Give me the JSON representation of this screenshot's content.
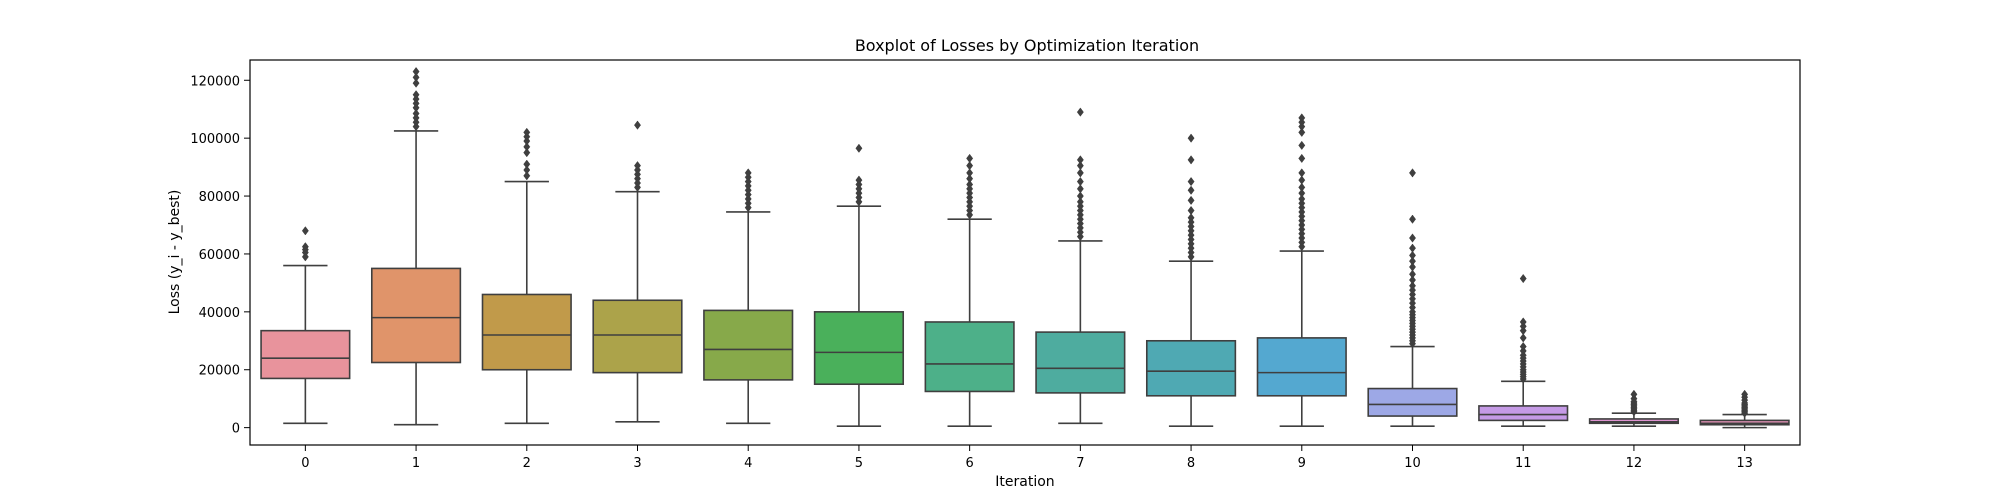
{
  "chart_data": {
    "type": "boxplot",
    "title": "Boxplot of Losses by Optimization Iteration",
    "xlabel": "Iteration",
    "ylabel": "Loss (y_i - y_best)",
    "ylim": [
      -6000,
      127000
    ],
    "yticks": [
      0,
      20000,
      40000,
      60000,
      80000,
      100000,
      120000
    ],
    "ytick_labels": [
      "0",
      "20000",
      "40000",
      "60000",
      "80000",
      "100000",
      "120000"
    ],
    "grid": false,
    "legend": "none",
    "categories": [
      "0",
      "1",
      "2",
      "3",
      "4",
      "5",
      "6",
      "7",
      "8",
      "9",
      "10",
      "11",
      "12",
      "13"
    ],
    "boxes": [
      {
        "category": "0",
        "color": "#e8939c",
        "whisker_low": 1500,
        "q1": 17000,
        "median": 24000,
        "q3": 33500,
        "whisker_high": 56000,
        "outliers": [
          59000,
          60500,
          61500,
          62500,
          68000
        ]
      },
      {
        "category": "1",
        "color": "#e0946a",
        "whisker_low": 1000,
        "q1": 22500,
        "median": 38000,
        "q3": 55000,
        "whisker_high": 102500,
        "outliers": [
          104000,
          105500,
          107000,
          108500,
          110500,
          112000,
          113500,
          115000,
          119000,
          121000,
          123000
        ]
      },
      {
        "category": "2",
        "color": "#c19a4a",
        "whisker_low": 1500,
        "q1": 20000,
        "median": 32000,
        "q3": 46000,
        "whisker_high": 85000,
        "outliers": [
          87000,
          89000,
          91000,
          95000,
          97000,
          99000,
          100500,
          102000
        ]
      },
      {
        "category": "3",
        "color": "#aca34a",
        "whisker_low": 2000,
        "q1": 19000,
        "median": 32000,
        "q3": 44000,
        "whisker_high": 81500,
        "outliers": [
          83000,
          84500,
          86000,
          87500,
          89000,
          90500,
          104500
        ]
      },
      {
        "category": "4",
        "color": "#87a94a",
        "whisker_low": 1500,
        "q1": 16500,
        "median": 27000,
        "q3": 40500,
        "whisker_high": 74500,
        "outliers": [
          76000,
          77500,
          79000,
          80500,
          82000,
          83500,
          85000,
          86500,
          88000
        ]
      },
      {
        "category": "5",
        "color": "#4ab05b",
        "whisker_low": 500,
        "q1": 15000,
        "median": 26000,
        "q3": 40000,
        "whisker_high": 76500,
        "outliers": [
          78000,
          79500,
          81000,
          82500,
          84000,
          85500,
          96500
        ]
      },
      {
        "category": "6",
        "color": "#4db089",
        "whisker_low": 500,
        "q1": 12500,
        "median": 22000,
        "q3": 36500,
        "whisker_high": 72000,
        "outliers": [
          73500,
          75000,
          76500,
          78000,
          79500,
          81000,
          82500,
          84000,
          86000,
          88000,
          90500,
          93000
        ]
      },
      {
        "category": "7",
        "color": "#4eac9f",
        "whisker_low": 1500,
        "q1": 12000,
        "median": 20500,
        "q3": 33000,
        "whisker_high": 64500,
        "outliers": [
          66000,
          67500,
          69000,
          70500,
          72000,
          73500,
          75000,
          76500,
          78000,
          80000,
          82500,
          85000,
          88000,
          90500,
          92500,
          109000
        ]
      },
      {
        "category": "8",
        "color": "#4fa9b3",
        "whisker_low": 500,
        "q1": 11000,
        "median": 19500,
        "q3": 30000,
        "whisker_high": 57500,
        "outliers": [
          59000,
          60500,
          62000,
          63500,
          65000,
          66500,
          68000,
          69500,
          71000,
          72500,
          75000,
          78500,
          82000,
          85000,
          92500,
          100000
        ]
      },
      {
        "category": "9",
        "color": "#54a8d0",
        "whisker_low": 500,
        "q1": 11000,
        "median": 19000,
        "q3": 31000,
        "whisker_high": 61000,
        "outliers": [
          62500,
          64000,
          65500,
          67000,
          68500,
          70000,
          71500,
          73000,
          74500,
          76000,
          77500,
          79000,
          81000,
          83000,
          85500,
          88000,
          93000,
          97500,
          102000,
          104000,
          105500,
          107000
        ]
      },
      {
        "category": "10",
        "color": "#9da8e6",
        "whisker_low": 500,
        "q1": 4000,
        "median": 8000,
        "q3": 13500,
        "whisker_high": 28000,
        "outliers": [
          29000,
          30000,
          31000,
          32000,
          33000,
          34000,
          35000,
          36000,
          37000,
          38000,
          39000,
          40000,
          41500,
          43000,
          44500,
          46000,
          47500,
          49000,
          51000,
          53000,
          55500,
          57500,
          59500,
          62000,
          65500,
          72000,
          88000
        ]
      },
      {
        "category": "11",
        "color": "#c59ae6",
        "whisker_low": 500,
        "q1": 2500,
        "median": 4500,
        "q3": 7500,
        "whisker_high": 16000,
        "outliers": [
          16800,
          17600,
          18400,
          19200,
          20000,
          21000,
          22000,
          23000,
          24000,
          25000,
          26500,
          28000,
          31000,
          33500,
          35000,
          36500,
          51500
        ]
      },
      {
        "category": "12",
        "color": "#dd93cf",
        "whisker_low": 500,
        "q1": 1500,
        "median": 2000,
        "q3": 3000,
        "whisker_high": 5000,
        "outliers": [
          5500,
          6000,
          6500,
          7000,
          7500,
          8000,
          8500,
          9000,
          10000,
          11500
        ]
      },
      {
        "category": "13",
        "color": "#e493b7",
        "whisker_low": 0,
        "q1": 1000,
        "median": 1500,
        "q3": 2500,
        "whisker_high": 4500,
        "outliers": [
          5000,
          5500,
          6000,
          6500,
          7000,
          7500,
          8000,
          8500,
          9500,
          10500,
          11500
        ]
      }
    ]
  }
}
